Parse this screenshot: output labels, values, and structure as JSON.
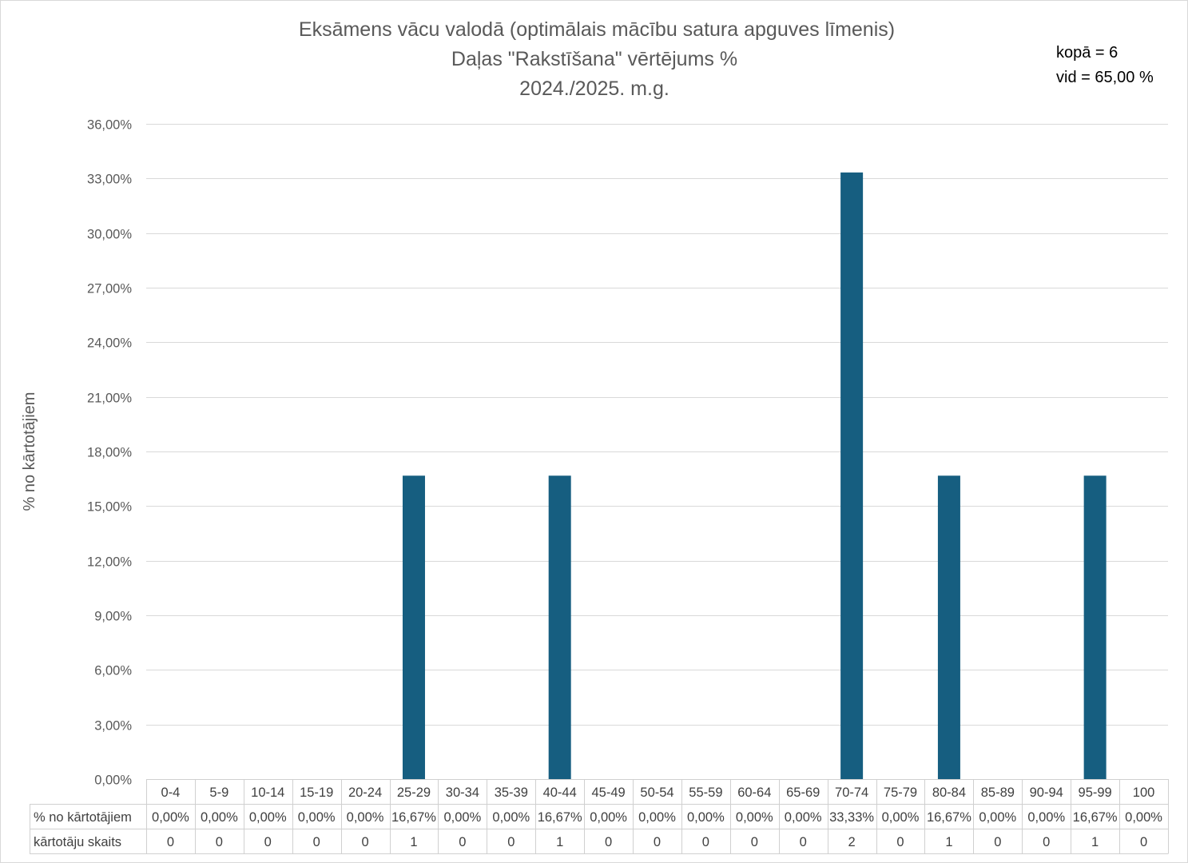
{
  "chart_data": {
    "type": "bar",
    "title": [
      "Eksāmens vācu valodā (optimālais mācību satura apguves līmenis)",
      "Daļas \"Rakstīšana\" vērtējums %",
      "2024./2025. m.g."
    ],
    "ylabel": "% no kārtotājiem",
    "categories": [
      "0-4",
      "5-9",
      "10-14",
      "15-19",
      "20-24",
      "25-29",
      "30-34",
      "35-39",
      "40-44",
      "45-49",
      "50-54",
      "55-59",
      "60-64",
      "65-69",
      "70-74",
      "75-79",
      "80-84",
      "85-89",
      "90-94",
      "95-99",
      "100"
    ],
    "values": [
      0,
      0,
      0,
      0,
      0,
      16.67,
      0,
      0,
      16.67,
      0,
      0,
      0,
      0,
      0,
      33.33,
      0,
      16.67,
      0,
      0,
      16.67,
      0
    ],
    "ylim": [
      0,
      36
    ],
    "ytick_step": 3,
    "grid": true,
    "annotations": [
      "kopā = 6",
      "vid = 65,00 %"
    ],
    "data_table": {
      "rows": [
        {
          "label": "% no kārtotājiem",
          "cells": [
            "0,00%",
            "0,00%",
            "0,00%",
            "0,00%",
            "0,00%",
            "16,67%",
            "0,00%",
            "0,00%",
            "16,67%",
            "0,00%",
            "0,00%",
            "0,00%",
            "0,00%",
            "0,00%",
            "33,33%",
            "0,00%",
            "16,67%",
            "0,00%",
            "0,00%",
            "16,67%",
            "0,00%"
          ]
        },
        {
          "label": "kārtotāju skaits",
          "cells": [
            0,
            0,
            0,
            0,
            0,
            1,
            0,
            0,
            1,
            0,
            0,
            0,
            0,
            0,
            2,
            0,
            1,
            0,
            0,
            1,
            0
          ]
        }
      ]
    }
  },
  "colors": {
    "bar": "#165e80",
    "grid": "#d9d9d9",
    "table_border": "#d0d0d0",
    "border": "#d9d9d9"
  }
}
